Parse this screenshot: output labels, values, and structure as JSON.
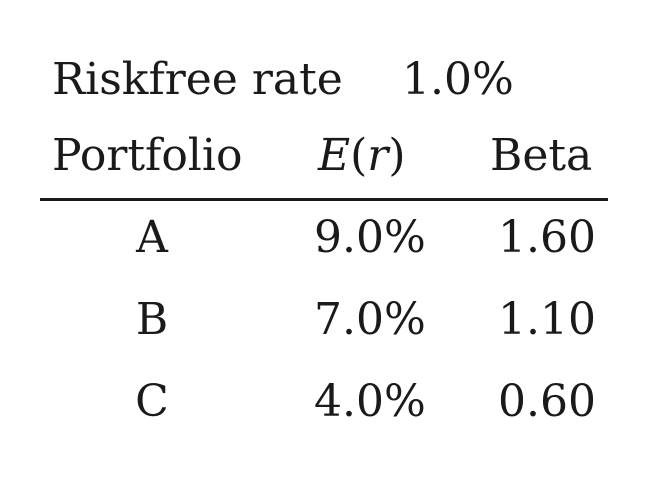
{
  "riskfree": {
    "label": "Riskfree rate",
    "value": "1.0%"
  },
  "table": {
    "headers": {
      "portfolio": "Portfolio",
      "er_symbol": "E",
      "er_arg": "r",
      "beta": "Beta"
    },
    "rows": [
      {
        "portfolio": "A",
        "er": "9.0%",
        "beta": "1.60"
      },
      {
        "portfolio": "B",
        "er": "7.0%",
        "beta": "1.10"
      },
      {
        "portfolio": "C",
        "er": "4.0%",
        "beta": "0.60"
      }
    ]
  }
}
